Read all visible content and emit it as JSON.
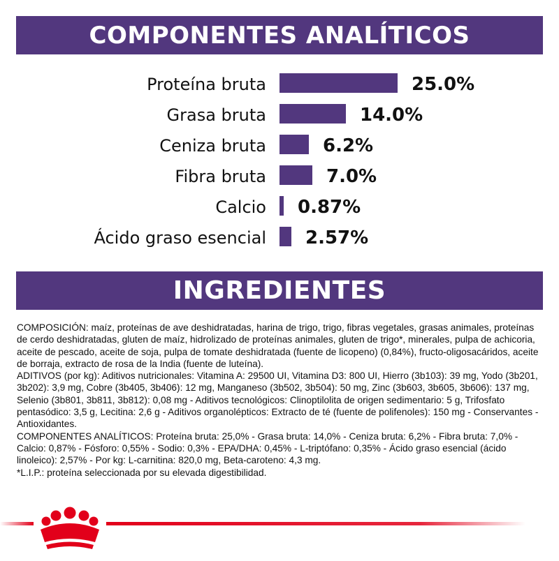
{
  "colors": {
    "banner": "#52377e",
    "bar": "#52377e",
    "accent_red": "#e2001a",
    "text": "#111111"
  },
  "sections": {
    "analytical_title": "COMPONENTES ANALÍTICOS",
    "ingredients_title": "INGREDIENTES"
  },
  "chart_data": {
    "type": "bar",
    "orientation": "horizontal",
    "categories": [
      "Proteína bruta",
      "Grasa bruta",
      "Ceniza bruta",
      "Fibra bruta",
      "Calcio",
      "Ácido graso esencial"
    ],
    "values": [
      25.0,
      14.0,
      6.2,
      7.0,
      0.87,
      2.57
    ],
    "value_labels": [
      "25.0%",
      "14.0%",
      "6.2%",
      "7.0%",
      "0.87%",
      "2.57%"
    ],
    "title": "",
    "xlabel": "",
    "ylabel": "",
    "grid": false
  },
  "ingredients_text": [
    "COMPOSICIÓN: maíz, proteínas de ave deshidratadas, harina de trigo, trigo, fibras vegetales, grasas animales, proteínas de cerdo deshidratadas, gluten de maíz, hidrolizado de proteínas animales, gluten de trigo*, minerales, pulpa de achicoria, aceite de pescado, aceite de soja, pulpa de tomate deshidratada (fuente de licopeno) (0,84%), fructo-oligosacáridos, aceite de borraja, extracto de rosa de la India (fuente de luteína).",
    "ADITIVOS (por kg): Aditivos nutricionales: Vitamina A: 29500 UI, Vitamina D3: 800 UI, Hierro (3b103): 39 mg, Yodo (3b201, 3b202): 3,9 mg, Cobre (3b405, 3b406): 12 mg, Manganeso (3b502, 3b504): 50 mg, Zinc (3b603, 3b605, 3b606): 137 mg, Selenio (3b801, 3b811, 3b812): 0,08 mg - Aditivos tecnológicos: Clinoptilolita de origen sedimentario: 5 g, Trifosfato pentasódico: 3,5 g, Lecitina: 2,6 g - Aditivos organolépticos: Extracto de té (fuente de polifenoles): 150 mg - Conservantes - Antioxidantes.",
    "COMPONENTES ANALÍTICOS: Proteína bruta: 25,0% - Grasa bruta: 14,0% - Ceniza bruta: 6,2% - Fibra bruta: 7,0% - Calcio: 0,87% - Fósforo: 0,55% - Sodio: 0,3% - EPA/DHA: 0,45% - L-triptófano: 0,35% - Ácido graso esencial (ácido linoleico): 2,57% - Por kg: L-carnitina: 820,0 mg, Beta-caroteno: 4,3 mg.",
    "*L.I.P.: proteína seleccionada por su elevada digestibilidad."
  ],
  "footer": {
    "logo_icon": "royal-crown-icon"
  }
}
